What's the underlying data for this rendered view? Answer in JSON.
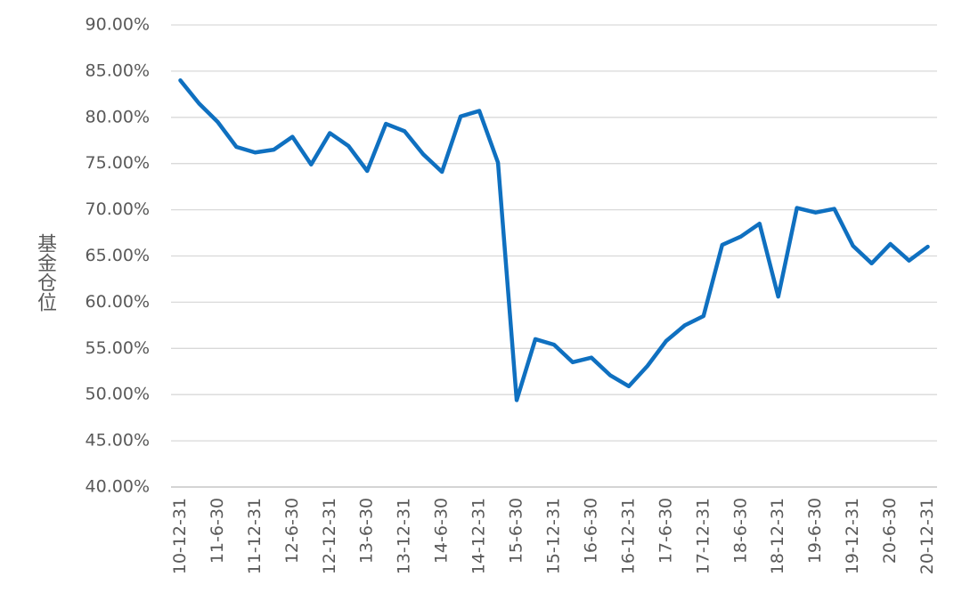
{
  "chart_data": {
    "type": "line",
    "y_label": "基金仓位",
    "categories": [
      "10-12-31",
      null,
      "11-6-30",
      null,
      "11-12-31",
      null,
      "12-6-30",
      null,
      "12-12-31",
      null,
      "13-6-30",
      null,
      "13-12-31",
      null,
      "14-6-30",
      null,
      "14-12-31",
      null,
      "15-6-30",
      null,
      "15-12-31",
      null,
      "16-6-30",
      null,
      "16-12-31",
      null,
      "17-6-30",
      null,
      "17-12-31",
      null,
      "18-6-30",
      null,
      "18-12-31",
      null,
      "19-6-30",
      null,
      "19-12-31",
      null,
      "20-6-30",
      null,
      "20-12-31"
    ],
    "values": [
      84.0,
      81.5,
      79.5,
      76.8,
      76.2,
      76.5,
      77.9,
      74.9,
      78.3,
      76.9,
      74.2,
      79.3,
      78.5,
      76.0,
      74.1,
      80.1,
      80.7,
      75.1,
      49.4,
      56.0,
      55.4,
      53.5,
      54.0,
      52.1,
      50.9,
      53.1,
      55.8,
      57.5,
      58.5,
      66.2,
      67.1,
      68.5,
      60.6,
      70.2,
      69.7,
      70.1,
      66.1,
      64.2,
      66.3,
      64.5,
      66.0
    ],
    "color": "#0f70c0",
    "ylim": [
      40,
      90
    ],
    "yticks": [
      {
        "value": 40,
        "label": "40.00%"
      },
      {
        "value": 45,
        "label": "45.00%"
      },
      {
        "value": 50,
        "label": "50.00%"
      },
      {
        "value": 55,
        "label": "55.00%"
      },
      {
        "value": 60,
        "label": "60.00%"
      },
      {
        "value": 65,
        "label": "65.00%"
      },
      {
        "value": 70,
        "label": "70.00%"
      },
      {
        "value": 75,
        "label": "75.00%"
      },
      {
        "value": 80,
        "label": "80.00%"
      },
      {
        "value": 85,
        "label": "85.00%"
      },
      {
        "value": 90,
        "label": "90.00%"
      }
    ],
    "grid": true
  }
}
